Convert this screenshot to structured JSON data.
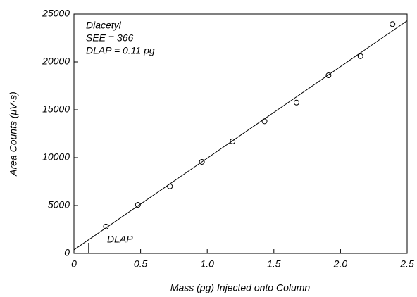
{
  "chart_data": {
    "type": "scatter",
    "annotations": [
      "Diacetyl",
      "SEE = 366",
      "DLAP = 0.11 pg"
    ],
    "x_label": "Mass (pg) Injected onto Column",
    "y_label": "Area Counts (μV·s)",
    "series": [
      {
        "x": [
          0.24,
          0.48,
          0.72,
          0.96,
          1.19,
          1.43,
          1.67,
          1.91,
          2.15,
          2.39
        ],
        "values": [
          2800,
          5070,
          7000,
          9560,
          11700,
          13800,
          15750,
          18600,
          20600,
          23950
        ],
        "color": "#000000",
        "marker": "circle"
      },
      {
        "x": [
          0,
          2.5
        ],
        "values": [
          370,
          24300
        ],
        "color": "#000000",
        "marker": "line"
      }
    ],
    "dlap_marker": {
      "x": 0.11,
      "label": "DLAP"
    },
    "xlim": [
      0,
      2.5
    ],
    "xticks": [
      0,
      0.5,
      {
        "value": 1,
        "label": "1.0"
      },
      1.5,
      {
        "value": 2,
        "label": "2.0"
      },
      2.5
    ],
    "ylim": [
      0,
      25000
    ],
    "yticks": [
      0,
      5000,
      10000,
      15000,
      20000,
      25000
    ],
    "grid": false
  }
}
